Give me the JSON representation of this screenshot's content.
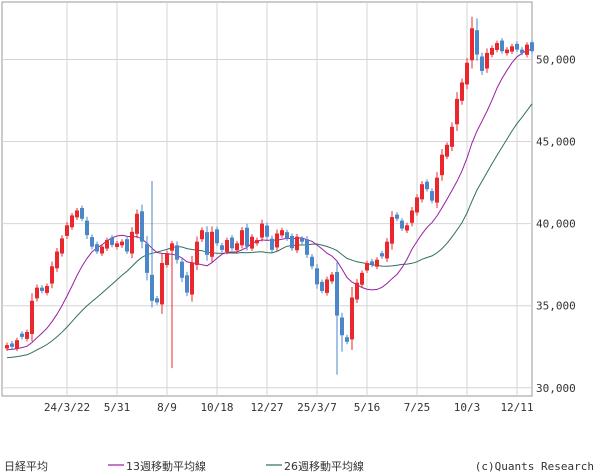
{
  "chart_data": {
    "type": "candlestick",
    "title": "日経平均",
    "credit": "(c)Quants Research",
    "y_ticks": [
      30000,
      35000,
      40000,
      45000,
      50000
    ],
    "y_tick_labels": [
      "30,000",
      "35,000",
      "40,000",
      "45,000",
      "50,000"
    ],
    "ylim": [
      29500,
      53500
    ],
    "x_tick_labels": [
      "24/3/22",
      "5/31",
      "8/9",
      "10/18",
      "12/27",
      "25/3/7",
      "5/16",
      "7/25",
      "10/3",
      "12/11"
    ],
    "x_tick_index": [
      12,
      22,
      32,
      42,
      52,
      62,
      72,
      82,
      92,
      102
    ],
    "num_weeks": 106,
    "grid": true,
    "up_color": "#e8282d",
    "down_color": "#4a86c8",
    "closes": [
      32600,
      32500,
      32900,
      33100,
      33400,
      35300,
      36100,
      35900,
      36200,
      37400,
      38300,
      39100,
      39900,
      40500,
      40800,
      40300,
      39300,
      38600,
      38300,
      38600,
      39000,
      38700,
      38800,
      38900,
      38300,
      39500,
      40600,
      38900,
      37000,
      35300,
      35200,
      37600,
      38200,
      38800,
      37800,
      36700,
      35800,
      37600,
      38900,
      39600,
      38100,
      39500,
      38800,
      38400,
      39000,
      38500,
      38800,
      39600,
      38600,
      39200,
      39000,
      40000,
      39200,
      38400,
      39400,
      39600,
      39100,
      38500,
      39200,
      38900,
      38100,
      37400,
      36300,
      35900,
      36600,
      36900,
      34400,
      33200,
      32800,
      35500,
      36400,
      37000,
      37600,
      37500,
      37800,
      38000,
      38900,
      40400,
      40300,
      39700,
      39900,
      40800,
      41600,
      42400,
      42100,
      41400,
      42800,
      44200,
      44800,
      45900,
      47600,
      48600,
      49800,
      51900,
      50300,
      49300,
      50400,
      50700,
      51000,
      50500,
      50600,
      50800,
      50600,
      50400,
      50900,
      50500
    ],
    "series": [
      {
        "name": "13週移動平均線",
        "color": "#9b1ea6"
      },
      {
        "name": "26週移動平均線",
        "color": "#2f6f5f"
      }
    ]
  }
}
